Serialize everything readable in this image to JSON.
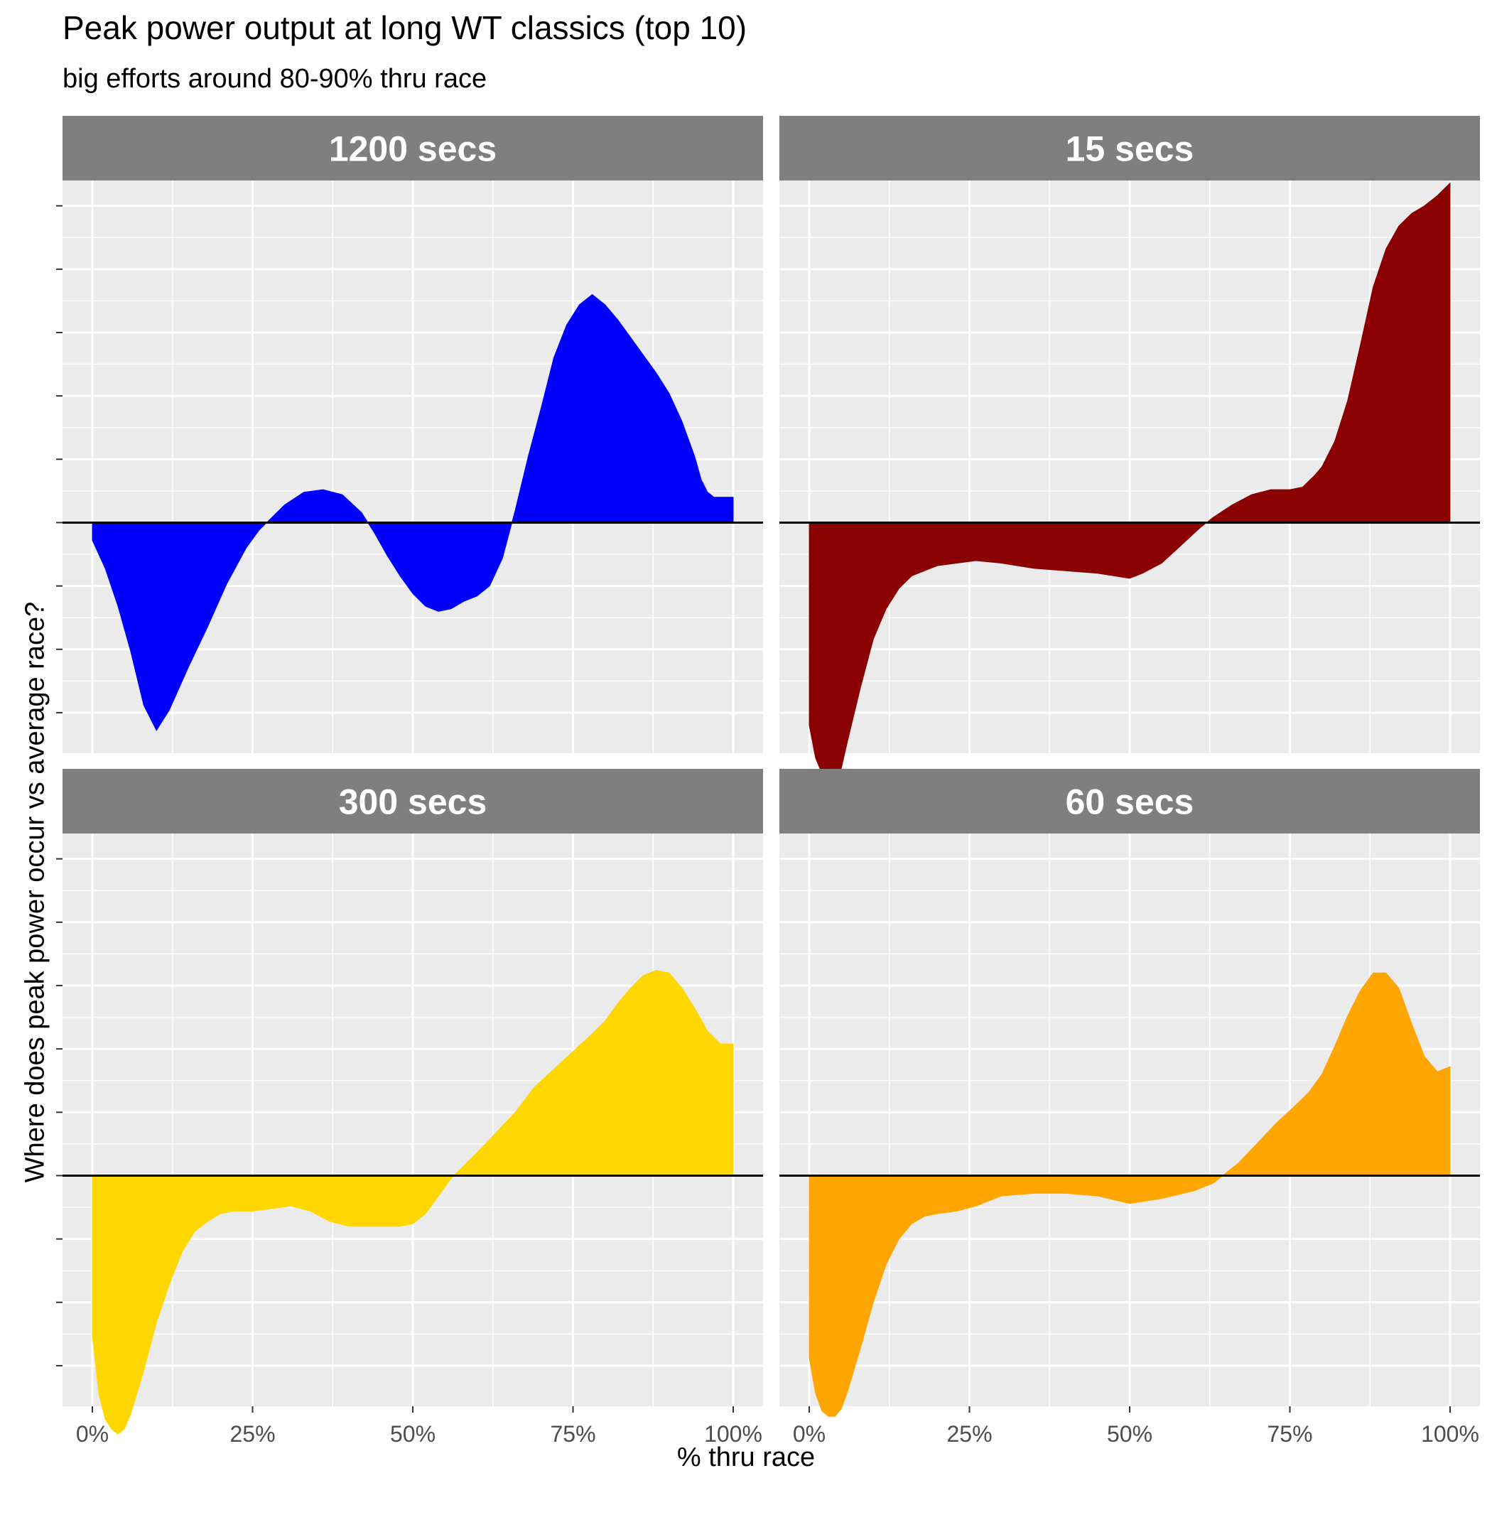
{
  "title": "Peak power output at long WT classics (top 10)",
  "subtitle": "big efforts around 80-90% thru race",
  "chart_data": {
    "type": "area",
    "facet_layout": "2x2",
    "shared_axes": true,
    "xlabel": "% thru race",
    "ylabel": "Where does peak power occur vs average race?",
    "xlim": [
      0,
      1
    ],
    "ylim": [
      -0.91,
      1.35
    ],
    "x_ticks": [
      0,
      0.25,
      0.5,
      0.75,
      1
    ],
    "x_tick_labels": [
      "0%",
      "25%",
      "50%",
      "75%",
      "100%"
    ],
    "y_tick_labels_shown": false,
    "grid": true,
    "zero_line": true,
    "panels": [
      {
        "label": "1200 secs",
        "color": "#0000ff",
        "x": [
          0,
          0.02,
          0.04,
          0.06,
          0.08,
          0.1,
          0.12,
          0.15,
          0.18,
          0.21,
          0.24,
          0.26,
          0.28,
          0.3,
          0.33,
          0.36,
          0.39,
          0.42,
          0.44,
          0.46,
          0.48,
          0.5,
          0.52,
          0.54,
          0.56,
          0.58,
          0.6,
          0.62,
          0.64,
          0.66,
          0.68,
          0.7,
          0.72,
          0.74,
          0.76,
          0.78,
          0.8,
          0.82,
          0.84,
          0.86,
          0.88,
          0.9,
          0.92,
          0.94,
          0.95,
          0.96,
          0.97,
          0.98,
          0.99,
          1.0
        ],
        "values": [
          -0.07,
          -0.18,
          -0.33,
          -0.51,
          -0.72,
          -0.82,
          -0.74,
          -0.57,
          -0.41,
          -0.24,
          -0.1,
          -0.03,
          0.02,
          0.07,
          0.12,
          0.13,
          0.11,
          0.04,
          -0.04,
          -0.13,
          -0.21,
          -0.28,
          -0.33,
          -0.35,
          -0.34,
          -0.31,
          -0.29,
          -0.25,
          -0.14,
          0.05,
          0.26,
          0.45,
          0.65,
          0.78,
          0.86,
          0.9,
          0.86,
          0.8,
          0.73,
          0.66,
          0.59,
          0.51,
          0.4,
          0.26,
          0.17,
          0.12,
          0.1,
          0.1,
          0.1,
          0.1
        ]
      },
      {
        "label": "15 secs",
        "color": "#8b0000",
        "x": [
          0,
          0.01,
          0.02,
          0.03,
          0.04,
          0.05,
          0.06,
          0.08,
          0.1,
          0.12,
          0.14,
          0.16,
          0.18,
          0.2,
          0.23,
          0.26,
          0.3,
          0.35,
          0.4,
          0.45,
          0.5,
          0.52,
          0.55,
          0.58,
          0.61,
          0.63,
          0.66,
          0.69,
          0.72,
          0.75,
          0.77,
          0.79,
          0.8,
          0.82,
          0.84,
          0.86,
          0.88,
          0.9,
          0.92,
          0.94,
          0.96,
          0.98,
          1.0
        ],
        "values": [
          -0.8,
          -0.93,
          -0.99,
          -1.02,
          -1.01,
          -0.97,
          -0.86,
          -0.65,
          -0.46,
          -0.34,
          -0.26,
          -0.21,
          -0.19,
          -0.17,
          -0.16,
          -0.15,
          -0.16,
          -0.18,
          -0.19,
          -0.2,
          -0.22,
          -0.2,
          -0.16,
          -0.09,
          -0.02,
          0.02,
          0.07,
          0.11,
          0.13,
          0.13,
          0.14,
          0.19,
          0.22,
          0.32,
          0.48,
          0.7,
          0.93,
          1.08,
          1.17,
          1.22,
          1.25,
          1.29,
          1.34
        ]
      },
      {
        "label": "300 secs",
        "color": "#ffd700",
        "x": [
          0,
          0.01,
          0.02,
          0.03,
          0.04,
          0.05,
          0.06,
          0.08,
          0.1,
          0.12,
          0.14,
          0.16,
          0.18,
          0.2,
          0.22,
          0.25,
          0.28,
          0.31,
          0.34,
          0.37,
          0.4,
          0.43,
          0.46,
          0.48,
          0.5,
          0.52,
          0.54,
          0.56,
          0.58,
          0.6,
          0.63,
          0.66,
          0.69,
          0.72,
          0.75,
          0.78,
          0.8,
          0.82,
          0.84,
          0.86,
          0.88,
          0.9,
          0.92,
          0.94,
          0.96,
          0.98,
          1.0
        ],
        "values": [
          -0.63,
          -0.86,
          -0.96,
          -1.0,
          -1.02,
          -1.0,
          -0.94,
          -0.77,
          -0.58,
          -0.43,
          -0.3,
          -0.22,
          -0.18,
          -0.15,
          -0.14,
          -0.14,
          -0.13,
          -0.12,
          -0.14,
          -0.18,
          -0.2,
          -0.2,
          -0.2,
          -0.2,
          -0.19,
          -0.15,
          -0.08,
          -0.01,
          0.04,
          0.09,
          0.17,
          0.25,
          0.35,
          0.42,
          0.49,
          0.56,
          0.61,
          0.68,
          0.74,
          0.79,
          0.81,
          0.8,
          0.74,
          0.66,
          0.57,
          0.52,
          0.52
        ]
      },
      {
        "label": "60 secs",
        "color": "#ffa500",
        "x": [
          0,
          0.01,
          0.02,
          0.03,
          0.04,
          0.05,
          0.06,
          0.08,
          0.1,
          0.12,
          0.14,
          0.16,
          0.18,
          0.2,
          0.23,
          0.26,
          0.3,
          0.35,
          0.4,
          0.45,
          0.5,
          0.55,
          0.6,
          0.63,
          0.65,
          0.67,
          0.7,
          0.73,
          0.76,
          0.78,
          0.8,
          0.82,
          0.84,
          0.86,
          0.88,
          0.9,
          0.92,
          0.94,
          0.96,
          0.98,
          1.0
        ],
        "values": [
          -0.72,
          -0.86,
          -0.93,
          -0.95,
          -0.95,
          -0.92,
          -0.85,
          -0.68,
          -0.5,
          -0.35,
          -0.25,
          -0.19,
          -0.16,
          -0.15,
          -0.14,
          -0.12,
          -0.08,
          -0.07,
          -0.07,
          -0.08,
          -0.11,
          -0.09,
          -0.06,
          -0.03,
          0.01,
          0.05,
          0.13,
          0.21,
          0.28,
          0.33,
          0.4,
          0.51,
          0.63,
          0.73,
          0.8,
          0.8,
          0.74,
          0.6,
          0.47,
          0.41,
          0.43
        ]
      }
    ]
  }
}
